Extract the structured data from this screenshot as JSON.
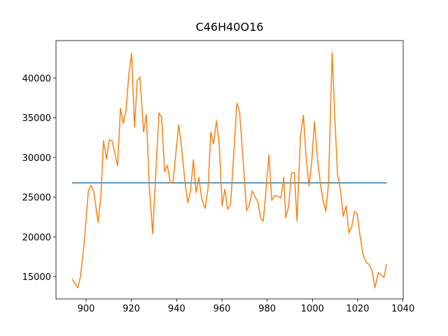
{
  "chart_data": {
    "type": "line",
    "title": "C46H40O16",
    "xlim": [
      886.7,
      1040.1
    ],
    "ylim": [
      12200,
      44700
    ],
    "xticks": [
      900,
      920,
      940,
      960,
      980,
      1000,
      1020,
      1040
    ],
    "yticks": [
      15000,
      20000,
      25000,
      30000,
      35000,
      40000
    ],
    "series": [
      {
        "color": "#1f77b4",
        "x": [
          893.8,
          1032.8
        ],
        "values": [
          26800,
          26800
        ]
      },
      {
        "color": "#ff7f0e",
        "x": [
          893.8,
          896.3,
          897.5,
          899.1,
          901,
          902.2,
          903.4,
          905.3,
          906.5,
          907.7,
          909,
          910.2,
          911.5,
          913.9,
          915.2,
          916.4,
          917.6,
          918.9,
          920.1,
          921.4,
          922.6,
          923.8,
          925.4,
          926.6,
          927.9,
          929.4,
          932.2,
          933.4,
          934.7,
          935.9,
          937.2,
          938.4,
          940.9,
          942.1,
          943.7,
          944.9,
          946.1,
          947.4,
          948.6,
          949.8,
          951.1,
          952.6,
          953.9,
          955.1,
          956.3,
          957.6,
          958.8,
          960.1,
          961.3,
          962.5,
          963.8,
          965.3,
          966.6,
          967.8,
          969.3,
          970.9,
          972.1,
          973.4,
          974.6,
          975.9,
          977.1,
          978.3,
          979.6,
          980.8,
          982,
          983.3,
          984.8,
          986.1,
          987.3,
          988.2,
          989.5,
          990.7,
          992,
          993.2,
          994.7,
          996,
          997.2,
          998.5,
          999.7,
          1000.9,
          1002.2,
          1003.4,
          1004.6,
          1005.9,
          1007.1,
          1008.7,
          1009.9,
          1011.1,
          1012.4,
          1013.6,
          1014.9,
          1016.1,
          1017.3,
          1018.6,
          1019.8,
          1021,
          1022.3,
          1023.5,
          1025.1,
          1026.3,
          1027.6,
          1029.1,
          1030.3,
          1031.6,
          1032.8
        ],
        "values": [
          14700,
          13600,
          15000,
          19000,
          25800,
          26500,
          25700,
          21800,
          25000,
          32100,
          29800,
          32200,
          32100,
          28900,
          36200,
          34300,
          35800,
          40500,
          43100,
          33800,
          39700,
          40100,
          33200,
          35400,
          26500,
          20400,
          35600,
          35000,
          28200,
          29000,
          26800,
          26900,
          34100,
          31500,
          26900,
          24300,
          25800,
          29700,
          25600,
          27500,
          24800,
          23600,
          26200,
          33200,
          31700,
          34600,
          31700,
          23900,
          26000,
          23500,
          24000,
          30700,
          36800,
          35800,
          30000,
          23300,
          24000,
          25800,
          25100,
          24400,
          22400,
          22000,
          26300,
          30300,
          24600,
          25200,
          25100,
          24900,
          27500,
          22400,
          23900,
          28000,
          28100,
          22000,
          32600,
          35300,
          30100,
          26400,
          29500,
          34500,
          29900,
          27000,
          24700,
          23200,
          26700,
          43200,
          35000,
          27800,
          25800,
          22600,
          23900,
          20500,
          21200,
          23200,
          22900,
          20200,
          17900,
          16900,
          16500,
          15800,
          13600,
          15500,
          15200,
          14900,
          16600
        ]
      }
    ]
  }
}
